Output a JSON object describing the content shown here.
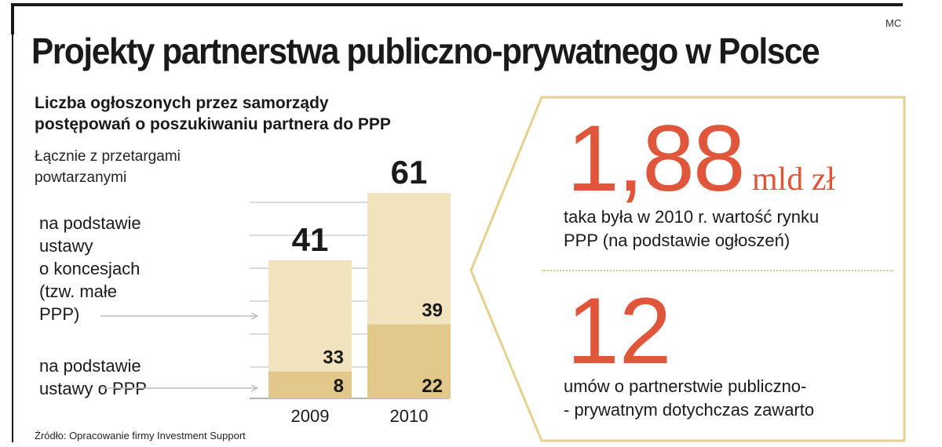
{
  "header": {
    "author": "MC",
    "title": "Projekty partnerstwa publiczno-prywatnego w Polsce"
  },
  "chart": {
    "subtitle_line1": "Liczba ogłoszonych przez samorządy",
    "subtitle_line2": "postępowań o poszukiwaniu partnera do PPP",
    "note_line1": "Łącznie z przetargami",
    "note_line2": "powtarzanymi",
    "legend_upper": [
      "na podstawie",
      "ustawy",
      "o koncesjach",
      "(tzw. małe",
      "PPP)"
    ],
    "legend_lower": [
      "na podstawie",
      "ustawy o PPP"
    ],
    "source": "Źródło: Opracowanie firmy Investment Support"
  },
  "chart_data": {
    "type": "bar",
    "stacked": true,
    "categories": [
      "2009",
      "2010"
    ],
    "series": [
      {
        "name": "na podstawie ustawy o PPP",
        "values": [
          8,
          22
        ],
        "color": "#e3c88c"
      },
      {
        "name": "na podstawie ustawy o koncesjach (tzw. małe PPP)",
        "values": [
          33,
          39
        ],
        "color": "#f2e3bf"
      }
    ],
    "totals": [
      41,
      61
    ],
    "title": "Liczba ogłoszonych przez samorządy postępowań o poszukiwaniu partnera do PPP",
    "ylim": [
      0,
      61
    ],
    "grid": true
  },
  "panel": {
    "stat1_value": "1,88",
    "stat1_unit": "mld zł",
    "stat1_desc_line1": "taka była w 2010 r. wartość rynku",
    "stat1_desc_line2": "PPP (na podstawie ogłoszeń)",
    "stat2_value": "12",
    "stat2_desc_line1": "umów o partnerstwie publiczno-",
    "stat2_desc_line2": "- prywatnym dotychczas zawarto",
    "accent_color": "#e0563a",
    "border_color": "#e6cf8f"
  }
}
